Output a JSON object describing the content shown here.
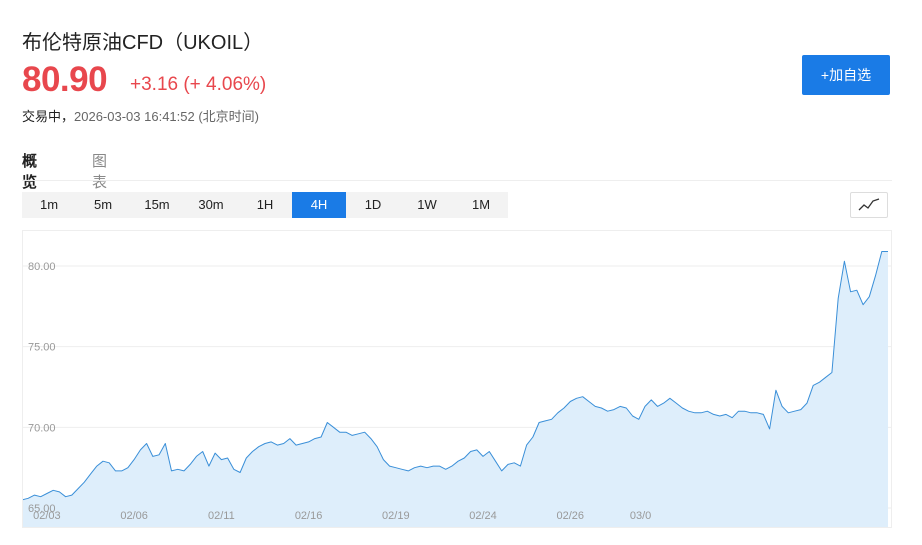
{
  "header": {
    "title": "布伦特原油CFD（UKOIL）",
    "price": "80.90",
    "change": "+3.16 (+ 4.06%)",
    "status_label": "交易中，",
    "timestamp": "2026-03-03 16:41:52 (北京时间)",
    "add_button": "+加自选"
  },
  "tabs": [
    {
      "label": "概览",
      "active": true
    },
    {
      "label": "图表",
      "active": false
    }
  ],
  "intervals": [
    "1m",
    "5m",
    "15m",
    "30m",
    "1H",
    "4H",
    "1D",
    "1W",
    "1M"
  ],
  "active_interval": "4H",
  "colors": {
    "accent": "#1a7be6",
    "up": "#e8474d",
    "line": "#3a8fd8",
    "area": "#deeefb"
  },
  "chart_data": {
    "type": "area",
    "ylim": [
      65,
      81
    ],
    "grid": true,
    "y_ticks": [
      "80.00",
      "75.00",
      "70.00",
      "65.00"
    ],
    "y_tick_values": [
      80,
      75,
      70,
      65
    ],
    "x_ticks": [
      "02/03",
      "02/06",
      "02/11",
      "02/16",
      "02/19",
      "02/24",
      "02/26",
      "03/0"
    ],
    "x_tick_positions": [
      4,
      18,
      32,
      46,
      60,
      74,
      88,
      101
    ],
    "values": [
      65.5,
      65.6,
      65.8,
      65.7,
      65.9,
      66.1,
      66.0,
      65.7,
      65.8,
      66.2,
      66.6,
      67.1,
      67.6,
      67.9,
      67.8,
      67.3,
      67.3,
      67.5,
      68.0,
      68.6,
      69.0,
      68.2,
      68.3,
      69.0,
      67.3,
      67.4,
      67.3,
      67.7,
      68.2,
      68.5,
      67.6,
      68.4,
      68.0,
      68.1,
      67.4,
      67.2,
      68.1,
      68.5,
      68.8,
      69.0,
      69.1,
      68.9,
      69.0,
      69.3,
      68.9,
      69.0,
      69.1,
      69.3,
      69.4,
      70.3,
      70.0,
      69.7,
      69.7,
      69.5,
      69.6,
      69.7,
      69.3,
      68.8,
      68.0,
      67.6,
      67.5,
      67.4,
      67.3,
      67.5,
      67.6,
      67.5,
      67.6,
      67.6,
      67.4,
      67.6,
      67.9,
      68.1,
      68.5,
      68.6,
      68.2,
      68.5,
      67.9,
      67.3,
      67.7,
      67.8,
      67.6,
      68.9,
      69.4,
      70.3,
      70.4,
      70.5,
      70.9,
      71.2,
      71.6,
      71.8,
      71.9,
      71.6,
      71.3,
      71.2,
      71.0,
      71.1,
      71.3,
      71.2,
      70.7,
      70.5,
      71.3,
      71.7,
      71.3,
      71.5,
      71.8,
      71.5,
      71.2,
      71.0,
      70.9,
      70.9,
      71.0,
      70.8,
      70.7,
      70.8,
      70.6,
      71.0,
      71.0,
      70.9,
      70.9,
      70.8,
      69.9,
      72.3,
      71.3,
      70.9,
      71.0,
      71.1,
      71.5,
      72.6,
      72.8,
      73.1,
      73.4,
      78.0,
      80.3,
      78.4,
      78.5,
      77.6,
      78.1,
      79.4,
      80.9,
      80.9
    ]
  }
}
